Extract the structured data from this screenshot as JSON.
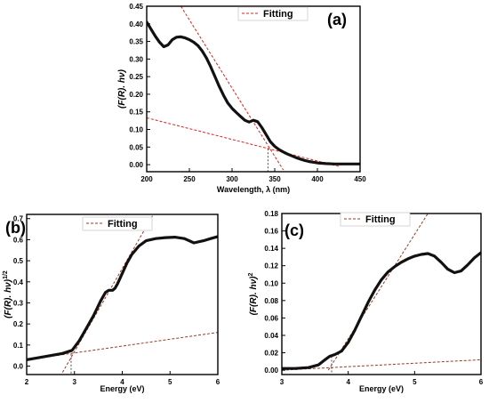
{
  "chart_data": [
    {
      "id": "a",
      "type": "line",
      "panel_label": "(a)",
      "xlabel": "Wavelength, λ (nm)",
      "ylabel": "(F(R). hν)",
      "xlim": [
        200,
        450
      ],
      "ylim": [
        -0.02,
        0.45
      ],
      "xticks": [
        200,
        250,
        300,
        350,
        400,
        450
      ],
      "yticks": [
        0.0,
        0.05,
        0.1,
        0.15,
        0.2,
        0.25,
        0.3,
        0.35,
        0.4,
        0.45
      ],
      "ytick_decimals": 2,
      "legend": {
        "label": "Fitting",
        "position": "top-center"
      },
      "fit_color": "#e0211d",
      "series": [
        {
          "name": "",
          "x": [
            200,
            205,
            210,
            215,
            220,
            225,
            230,
            235,
            240,
            245,
            250,
            255,
            260,
            265,
            270,
            275,
            280,
            285,
            290,
            295,
            300,
            305,
            310,
            315,
            320,
            325,
            330,
            335,
            340,
            345,
            350,
            355,
            360,
            365,
            370,
            375,
            380,
            385,
            390,
            395,
            400,
            410,
            420,
            430,
            440,
            450
          ],
          "y": [
            0.405,
            0.385,
            0.365,
            0.348,
            0.335,
            0.34,
            0.355,
            0.362,
            0.363,
            0.36,
            0.355,
            0.348,
            0.338,
            0.323,
            0.303,
            0.278,
            0.25,
            0.222,
            0.197,
            0.175,
            0.16,
            0.148,
            0.137,
            0.126,
            0.121,
            0.126,
            0.122,
            0.105,
            0.085,
            0.065,
            0.052,
            0.043,
            0.036,
            0.03,
            0.025,
            0.02,
            0.016,
            0.012,
            0.009,
            0.007,
            0.005,
            0.003,
            0.002,
            0.002,
            0.002,
            0.002
          ]
        }
      ],
      "fit_lines": [
        {
          "x": [
            240,
            360
          ],
          "y": [
            0.45,
            -0.015
          ]
        },
        {
          "x": [
            200,
            425
          ],
          "y": [
            0.133,
            -0.005
          ]
        }
      ],
      "drop_line": {
        "x": 342,
        "y": 0.045
      }
    },
    {
      "id": "b",
      "type": "line",
      "panel_label": "(b)",
      "xlabel": "Energy (eV)",
      "ylabel": "(F(R). hν)",
      "ylabel_superscript": "1/2",
      "xlim": [
        2,
        6
      ],
      "ylim": [
        -0.04,
        0.72
      ],
      "xticks": [
        2,
        3,
        4,
        5,
        6
      ],
      "yticks": [
        0.0,
        0.1,
        0.2,
        0.3,
        0.4,
        0.5,
        0.6,
        0.7
      ],
      "ytick_decimals": 1,
      "legend": {
        "label": "Fitting",
        "position": "top-left"
      },
      "fit_color": "#9b3a22",
      "series": [
        {
          "name": "",
          "x": [
            2.0,
            2.25,
            2.5,
            2.75,
            2.95,
            3.1,
            3.25,
            3.4,
            3.55,
            3.65,
            3.72,
            3.8,
            3.85,
            3.9,
            4.0,
            4.1,
            4.2,
            4.35,
            4.5,
            4.7,
            4.9,
            5.1,
            5.3,
            5.5,
            5.7,
            5.85,
            6.0
          ],
          "y": [
            0.03,
            0.04,
            0.05,
            0.06,
            0.075,
            0.12,
            0.18,
            0.24,
            0.31,
            0.35,
            0.36,
            0.36,
            0.37,
            0.39,
            0.44,
            0.49,
            0.53,
            0.57,
            0.595,
            0.605,
            0.61,
            0.612,
            0.605,
            0.585,
            0.595,
            0.605,
            0.615
          ]
        }
      ],
      "fit_lines": [
        {
          "x": [
            2.75,
            4.65
          ],
          "y": [
            -0.03,
            0.72
          ]
        },
        {
          "x": [
            2.0,
            6.0
          ],
          "y": [
            0.03,
            0.16
          ]
        }
      ],
      "drop_line": {
        "x": 2.93,
        "y": 0.075
      }
    },
    {
      "id": "c",
      "type": "line",
      "panel_label": "(c)",
      "xlabel": "Energy (eV)",
      "ylabel": "(F(R). hν)",
      "ylabel_superscript": "2",
      "xlim": [
        3,
        6
      ],
      "ylim": [
        -0.005,
        0.18
      ],
      "xticks": [
        3,
        4,
        5,
        6
      ],
      "yticks": [
        0.0,
        0.02,
        0.04,
        0.06,
        0.08,
        0.1,
        0.12,
        0.14,
        0.16,
        0.18
      ],
      "ytick_decimals": 2,
      "legend": {
        "label": "Fitting",
        "position": "top-center"
      },
      "fit_color": "#9b3a22",
      "series": [
        {
          "name": "",
          "x": [
            3.0,
            3.2,
            3.4,
            3.55,
            3.65,
            3.72,
            3.8,
            3.9,
            4.0,
            4.1,
            4.2,
            4.3,
            4.4,
            4.5,
            4.6,
            4.7,
            4.8,
            4.9,
            5.0,
            5.1,
            5.2,
            5.3,
            5.4,
            5.5,
            5.6,
            5.7,
            5.8,
            5.9,
            6.0
          ],
          "y": [
            0.002,
            0.002,
            0.003,
            0.006,
            0.012,
            0.016,
            0.018,
            0.022,
            0.032,
            0.046,
            0.062,
            0.078,
            0.092,
            0.104,
            0.113,
            0.119,
            0.124,
            0.128,
            0.131,
            0.133,
            0.134,
            0.131,
            0.124,
            0.116,
            0.112,
            0.114,
            0.121,
            0.129,
            0.135
          ]
        }
      ],
      "fit_lines": [
        {
          "x": [
            3.7,
            5.2
          ],
          "y": [
            0.0,
            0.18
          ]
        },
        {
          "x": [
            3.0,
            6.0
          ],
          "y": [
            0.0,
            0.012
          ]
        }
      ],
      "drop_line": {
        "x": 3.75,
        "y": 0.016
      }
    }
  ]
}
